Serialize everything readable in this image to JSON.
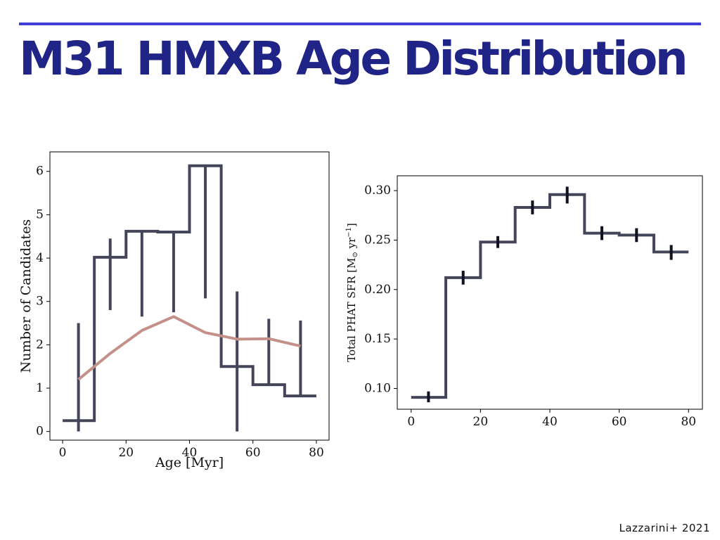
{
  "slide": {
    "title": "M31 HMXB Age Distribution",
    "credit": "Lazzarini+ 2021",
    "accent_color": "#3f3fd6",
    "title_color": "#202486"
  },
  "chart_data": [
    {
      "type": "line",
      "xlabel": "Age [Myr]",
      "ylabel": "Number of Candidates",
      "xlim": [
        -4,
        84
      ],
      "ylim": [
        -0.2,
        6.45
      ],
      "xticks": [
        0,
        20,
        40,
        60,
        80
      ],
      "yticks": [
        0,
        1,
        2,
        3,
        4,
        5,
        6
      ],
      "grid": false,
      "series": [
        {
          "style": "step",
          "color": "#45455a",
          "edges": [
            0,
            10,
            20,
            30,
            40,
            50,
            60,
            70,
            80
          ],
          "values": [
            0.25,
            4.02,
            4.62,
            4.6,
            6.13,
            1.5,
            1.08,
            0.82
          ]
        },
        {
          "style": "errorbars",
          "color": "#45455a",
          "x": [
            5,
            15,
            25,
            35,
            45,
            55,
            65,
            75
          ],
          "low": [
            0.0,
            2.8,
            2.65,
            2.75,
            3.07,
            0.0,
            1.08,
            0.82
          ],
          "high": [
            2.5,
            4.45,
            4.62,
            4.6,
            6.13,
            3.23,
            2.6,
            2.56
          ]
        },
        {
          "style": "line",
          "color": "#c4918a",
          "x": [
            5,
            15,
            25,
            35,
            45,
            55,
            65,
            75
          ],
          "values": [
            1.2,
            1.8,
            2.33,
            2.65,
            2.28,
            2.13,
            2.14,
            1.97
          ]
        }
      ]
    },
    {
      "type": "line",
      "xlabel": "",
      "ylabel_main": "Total PHAT SFR [M",
      "ylabel_sub": "⊙",
      "ylabel_unit": " yr",
      "ylabel_sup": "−1",
      "ylabel_end": "]",
      "xlim": [
        -4,
        84
      ],
      "ylim": [
        0.079,
        0.315
      ],
      "xticks": [
        0,
        20,
        40,
        60,
        80
      ],
      "yticks": [
        "0.10",
        "0.15",
        "0.20",
        "0.25",
        "0.30"
      ],
      "grid": false,
      "series": [
        {
          "style": "step",
          "color": "#45455a",
          "edges": [
            0,
            10,
            20,
            30,
            40,
            50,
            60,
            70,
            80
          ],
          "values": [
            0.091,
            0.212,
            0.248,
            0.283,
            0.296,
            0.257,
            0.255,
            0.238
          ]
        },
        {
          "style": "errorbars",
          "color": "#111122",
          "x": [
            5,
            15,
            25,
            35,
            45,
            55,
            65,
            75
          ],
          "low": [
            0.086,
            0.205,
            0.242,
            0.276,
            0.287,
            0.25,
            0.248,
            0.23
          ],
          "high": [
            0.097,
            0.219,
            0.254,
            0.29,
            0.304,
            0.264,
            0.262,
            0.245
          ]
        }
      ]
    }
  ]
}
